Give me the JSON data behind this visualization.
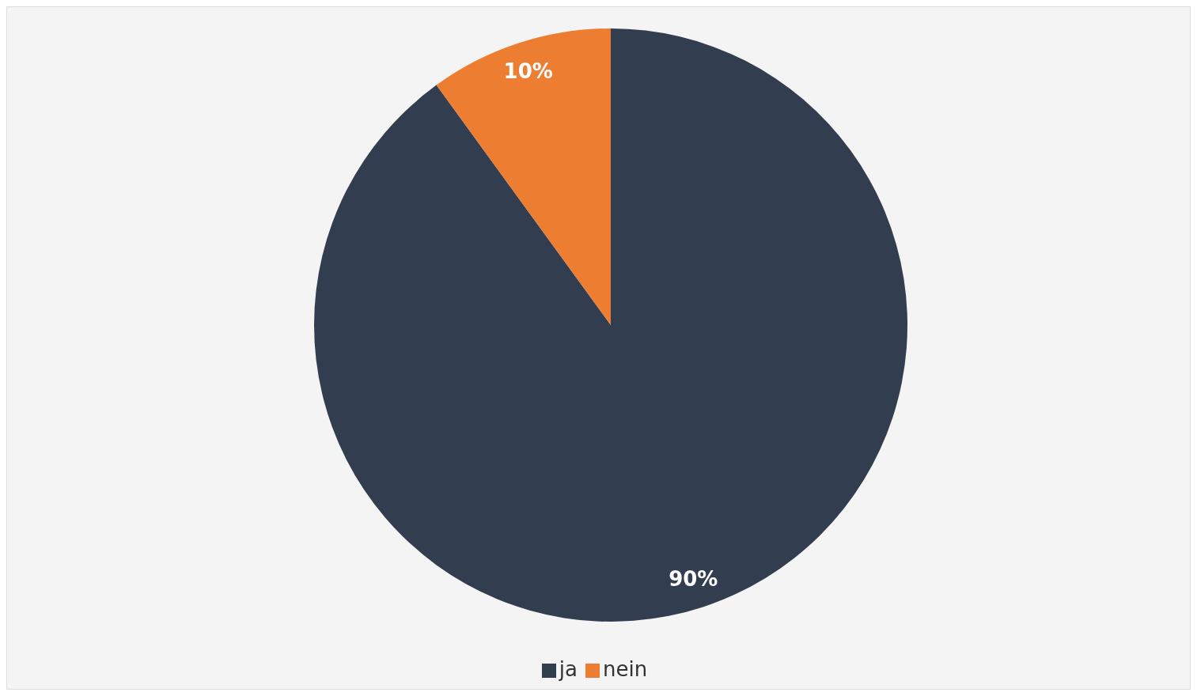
{
  "chart_data": {
    "type": "pie",
    "categories": [
      "ja",
      "nein"
    ],
    "values": [
      90,
      10
    ],
    "colors": [
      "#333d50",
      "#ed7d31"
    ],
    "value_labels": [
      "90%",
      "10%"
    ],
    "legend": "bottom"
  }
}
